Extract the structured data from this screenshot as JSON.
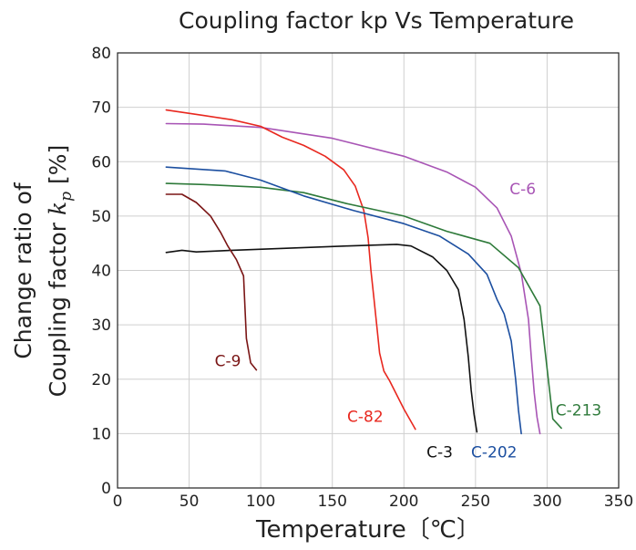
{
  "chart_data": {
    "type": "line",
    "title": "Coupling factor kp Vs Temperature",
    "xlabel": "Temperature〔℃〕",
    "ylabel_line1": "Change ratio of",
    "ylabel_line2_prefix": "Coupling factor ",
    "ylabel_symbol": "k",
    "ylabel_subscript": "p",
    "ylabel_line2_suffix": " [%]",
    "xlim": [
      0,
      350
    ],
    "ylim": [
      0,
      80
    ],
    "xticks": [
      0,
      50,
      100,
      150,
      200,
      250,
      300,
      350
    ],
    "yticks": [
      0,
      10,
      20,
      30,
      40,
      50,
      60,
      70,
      80
    ],
    "grid": true,
    "legend": "none",
    "series": [
      {
        "name": "C-6",
        "color": "#a855b5",
        "label_at": [
          283,
          55
        ],
        "points": [
          [
            34,
            67
          ],
          [
            60,
            66.9
          ],
          [
            100,
            66.3
          ],
          [
            150,
            64.3
          ],
          [
            200,
            61
          ],
          [
            230,
            58.1
          ],
          [
            250,
            55.3
          ],
          [
            265,
            51.5
          ],
          [
            275,
            46.3
          ],
          [
            282,
            39.5
          ],
          [
            287,
            31
          ],
          [
            289,
            24
          ],
          [
            291,
            17.5
          ],
          [
            293,
            13
          ],
          [
            295,
            10
          ]
        ]
      },
      {
        "name": "C-82",
        "color": "#e8281f",
        "label_at": [
          173,
          13.2
        ],
        "points": [
          [
            34,
            69.5
          ],
          [
            60,
            68.5
          ],
          [
            80,
            67.7
          ],
          [
            100,
            66.5
          ],
          [
            115,
            64.5
          ],
          [
            130,
            63
          ],
          [
            145,
            61
          ],
          [
            158,
            58.5
          ],
          [
            166,
            55.5
          ],
          [
            172,
            51
          ],
          [
            175,
            46
          ],
          [
            177,
            40
          ],
          [
            179,
            35
          ],
          [
            181,
            30
          ],
          [
            183,
            24.8
          ],
          [
            186,
            21.5
          ],
          [
            190,
            19.7
          ],
          [
            200,
            14.5
          ],
          [
            208,
            10.8
          ]
        ]
      },
      {
        "name": "C-213",
        "color": "#2e7a3a",
        "label_at": [
          322,
          14.3
        ],
        "points": [
          [
            34,
            56
          ],
          [
            60,
            55.8
          ],
          [
            100,
            55.3
          ],
          [
            130,
            54.3
          ],
          [
            160,
            52.3
          ],
          [
            200,
            50
          ],
          [
            230,
            47.2
          ],
          [
            260,
            45
          ],
          [
            280,
            40.5
          ],
          [
            295,
            33.5
          ],
          [
            300,
            22
          ],
          [
            304,
            12.7
          ],
          [
            310,
            11
          ]
        ]
      },
      {
        "name": "C-202",
        "color": "#1c4fa0",
        "label_at": [
          263,
          6.6
        ],
        "points": [
          [
            34,
            59
          ],
          [
            75,
            58.3
          ],
          [
            100,
            56.6
          ],
          [
            130,
            53.7
          ],
          [
            165,
            51
          ],
          [
            200,
            48.6
          ],
          [
            225,
            46.3
          ],
          [
            245,
            43
          ],
          [
            258,
            39.3
          ],
          [
            265,
            34.7
          ],
          [
            270,
            32
          ],
          [
            275,
            27
          ],
          [
            278,
            20
          ],
          [
            280,
            14.3
          ],
          [
            282,
            10
          ]
        ]
      },
      {
        "name": "C-3",
        "color": "#111111",
        "label_at": [
          225,
          6.6
        ],
        "points": [
          [
            34,
            43.3
          ],
          [
            45,
            43.7
          ],
          [
            55,
            43.4
          ],
          [
            80,
            43.7
          ],
          [
            120,
            44.1
          ],
          [
            160,
            44.5
          ],
          [
            195,
            44.8
          ],
          [
            205,
            44.5
          ],
          [
            220,
            42.5
          ],
          [
            230,
            40
          ],
          [
            238,
            36.5
          ],
          [
            242,
            31
          ],
          [
            245,
            24
          ],
          [
            247,
            18
          ],
          [
            249,
            13.5
          ],
          [
            251,
            10.3
          ]
        ]
      },
      {
        "name": "C-9",
        "color": "#7a1515",
        "label_at": [
          77,
          23.4
        ],
        "points": [
          [
            34,
            54
          ],
          [
            45,
            54
          ],
          [
            55,
            52.5
          ],
          [
            65,
            50
          ],
          [
            72,
            47
          ],
          [
            77,
            44.5
          ],
          [
            83,
            42
          ],
          [
            88,
            39
          ],
          [
            89,
            33
          ],
          [
            90,
            27.5
          ],
          [
            93,
            23
          ],
          [
            97,
            21.7
          ]
        ]
      }
    ]
  }
}
